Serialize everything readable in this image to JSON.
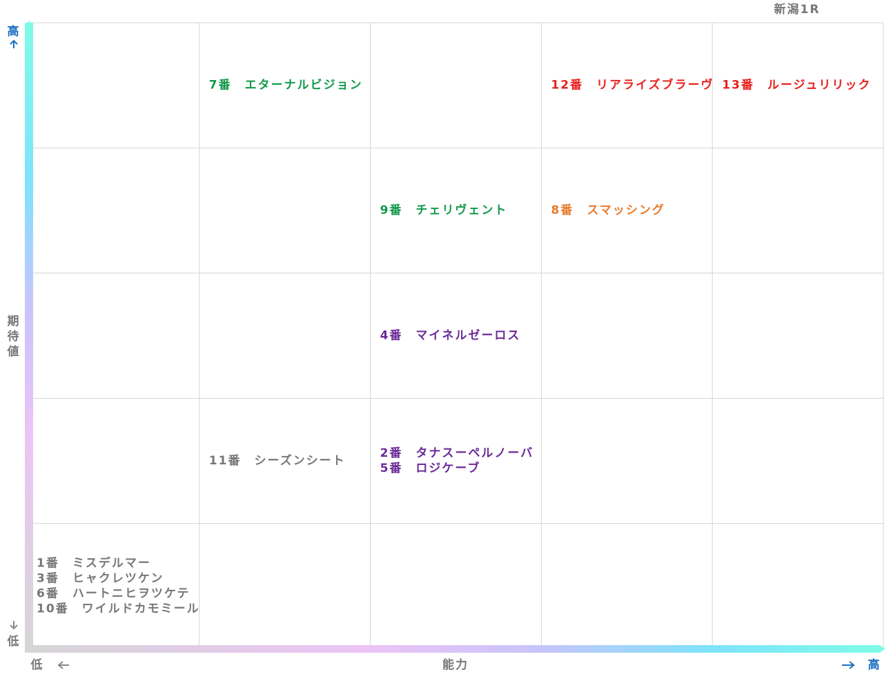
{
  "title": "新潟1R",
  "x_axis": {
    "low": "低",
    "label": "能力",
    "high": "高"
  },
  "y_axis": {
    "high": "高",
    "label": "期待値",
    "low": "低"
  },
  "grid": [
    [
      [],
      [
        {
          "text": "7番　エターナルビジョン",
          "color": "#12994a"
        }
      ],
      [],
      [
        {
          "text": "12番　リアライズブラーヴ",
          "color": "#e8201c"
        }
      ],
      [
        {
          "text": "13番　ルージュリリック",
          "color": "#e8201c"
        }
      ]
    ],
    [
      [],
      [],
      [
        {
          "text": "9番　チェリヴェント",
          "color": "#12994a"
        }
      ],
      [
        {
          "text": "8番　スマッシング",
          "color": "#e87a2c"
        }
      ],
      []
    ],
    [
      [],
      [],
      [
        {
          "text": "4番　マイネルゼーロス",
          "color": "#6a2a98"
        }
      ],
      [],
      []
    ],
    [
      [],
      [
        {
          "text": "11番　シーズンシート",
          "color": "#777777"
        }
      ],
      [
        {
          "text": "2番　タナスーペルノーバ",
          "color": "#6a2a98"
        },
        {
          "text": "5番　ロジケーブ",
          "color": "#6a2a98"
        }
      ],
      [],
      []
    ],
    [
      [
        {
          "text": "1番　ミスデルマー",
          "color": "#777777"
        },
        {
          "text": "3番　ヒャクレツケン",
          "color": "#777777"
        },
        {
          "text": "6番　ハートニヒヲツケテ",
          "color": "#777777"
        },
        {
          "text": "10番　ワイルドカモミール",
          "color": "#777777"
        }
      ],
      [],
      [],
      [],
      []
    ]
  ]
}
